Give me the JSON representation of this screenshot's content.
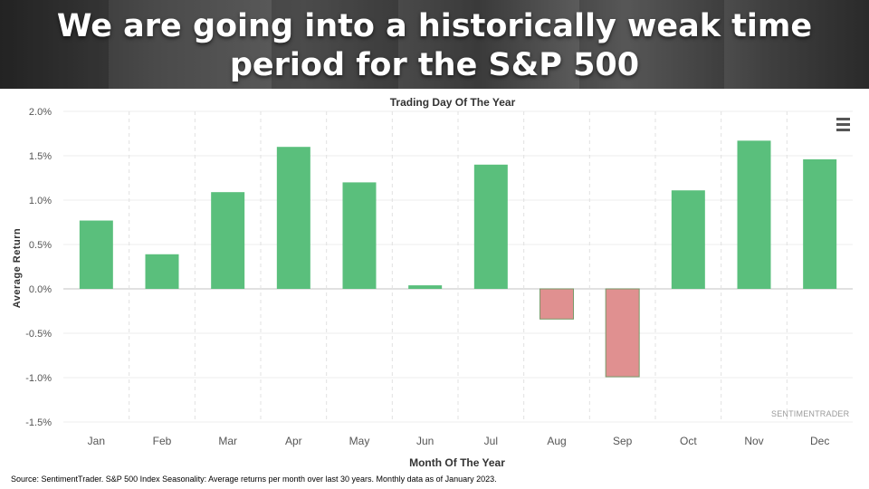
{
  "banner": {
    "title": "We are going into a historically weak time period for the S&P 500"
  },
  "chart_data": {
    "type": "bar",
    "title": "Trading Day Of The Year",
    "xlabel": "Month Of The Year",
    "ylabel": "Average Return",
    "categories": [
      "Jan",
      "Feb",
      "Mar",
      "Apr",
      "May",
      "Jun",
      "Jul",
      "Aug",
      "Sep",
      "Oct",
      "Nov",
      "Dec"
    ],
    "values": [
      0.77,
      0.39,
      1.09,
      1.6,
      1.2,
      0.04,
      1.4,
      -0.34,
      -0.99,
      1.11,
      1.67,
      1.46
    ],
    "ylim": [
      -1.5,
      2.0
    ],
    "yticks": [
      "2.0%",
      "1.5%",
      "1.0%",
      "0.5%",
      "0.0%",
      "-0.5%",
      "-1.0%",
      "-1.5%"
    ],
    "grid": true,
    "colors": {
      "positive": "#5abf7c",
      "negative": "#e09090",
      "negative_border": "#7a9a6a"
    }
  },
  "watermark": "SENTIMENTRADER",
  "source": "Source: SentimentTrader. S&P 500 Index Seasonality: Average returns per month over last 30 years. Monthly data as of January 2023.",
  "menu_icon": "hamburger-menu-icon"
}
